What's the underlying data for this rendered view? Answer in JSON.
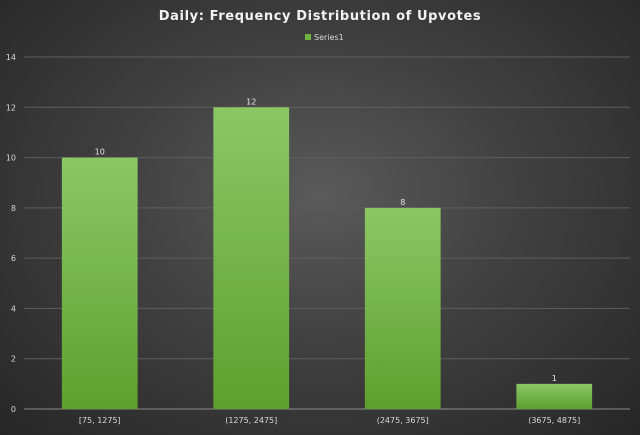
{
  "chart_data": {
    "type": "bar",
    "title": "Daily:  Frequency  Distribution  of  Upvotes",
    "xlabel": "",
    "ylabel": "",
    "categories": [
      "[75, 1275]",
      "(1275, 2475]",
      "(2475, 3675]",
      "(3675, 4875]"
    ],
    "series": [
      {
        "name": "Series1",
        "values": [
          10,
          12,
          8,
          1
        ]
      }
    ],
    "ylim": [
      0,
      14
    ],
    "yticks": [
      0,
      2,
      4,
      6,
      8,
      10,
      12,
      14
    ],
    "grid": true,
    "legend_position": "top-center",
    "data_labels": true,
    "colors": {
      "bar_top": "#8cc766",
      "bar_bottom": "#5ea02f",
      "legend_swatch": "#6fb43f"
    }
  }
}
